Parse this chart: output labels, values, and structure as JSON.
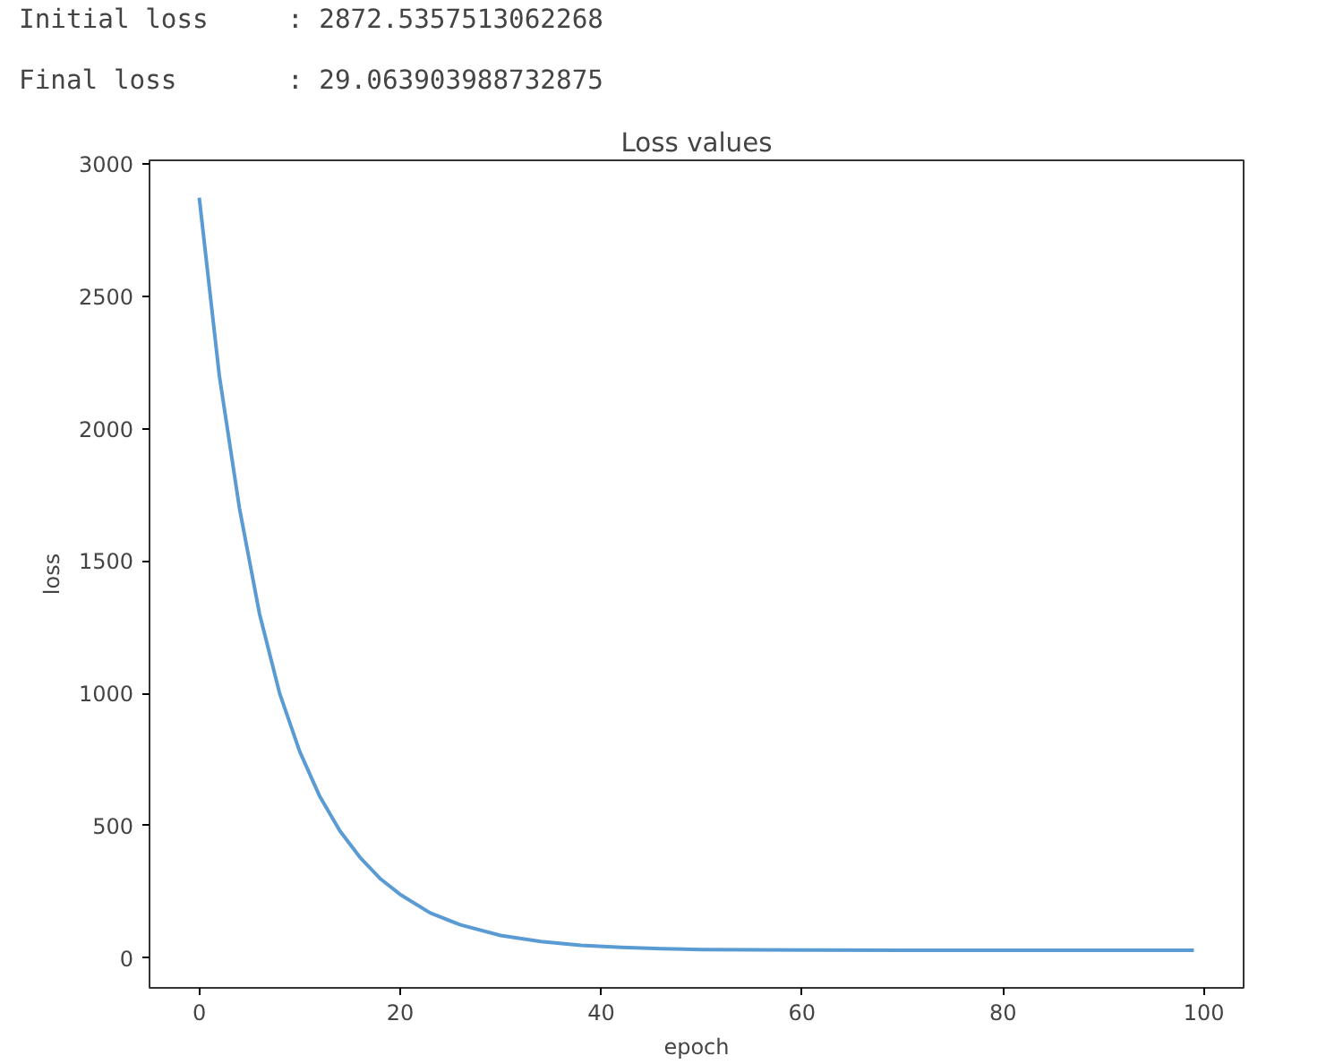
{
  "chart_data": {
    "type": "line",
    "title": "Loss values",
    "xlabel": "epoch",
    "ylabel": "loss",
    "annotations": [
      "Initial loss     : 2872.5357513062268",
      "Final loss       : 29.063903988732875"
    ],
    "xlim": [
      -4.95,
      103.95
    ],
    "ylim": [
      -113,
      3014
    ],
    "xticks": [
      0,
      20,
      40,
      60,
      80,
      100
    ],
    "yticks": [
      0,
      500,
      1000,
      1500,
      2000,
      2500,
      3000
    ],
    "grid": false,
    "marker": "none",
    "line_style": "solid",
    "series": [
      {
        "color": "#5a9bd4",
        "x": [
          0,
          2,
          4,
          6,
          8,
          10,
          12,
          14,
          16,
          18,
          20,
          23,
          26,
          30,
          34,
          38,
          42,
          46,
          50,
          60,
          70,
          80,
          90,
          99
        ],
        "values": [
          2873,
          2200,
          1700,
          1300,
          1000,
          780,
          610,
          480,
          380,
          300,
          240,
          170,
          125,
          85,
          62,
          48,
          40,
          35,
          32,
          30,
          29,
          29,
          29,
          29
        ]
      }
    ]
  }
}
